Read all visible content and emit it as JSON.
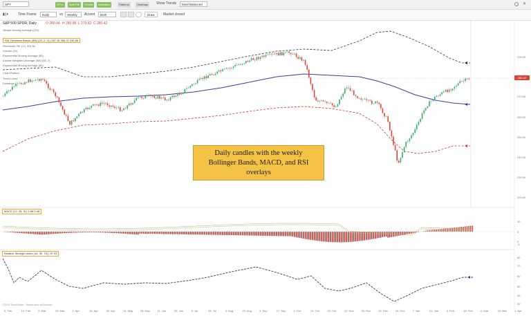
{
  "app": {
    "symbol": "SPY",
    "chart_title": "S&P 500 SPDR, Daily",
    "ohlc": {
      "open": "O 280.44",
      "high": "H 280.88",
      "low": "L 279.82",
      "close": "C 280.42"
    },
    "current_price": "280.42"
  },
  "toolbar": {
    "timeframe_label": "Time Frame",
    "timeframe_value": "Daily",
    "vs_label": "vs",
    "compare_value": "Weekly",
    "accent_label": "Accent",
    "accent_value": "Both",
    "chips": [
      "SPYn",
      "Auto Fib",
      "Trends",
      "Indicators",
      "Patterns",
      "Heatmap"
    ],
    "show_trends_label": "Show Trends",
    "most_balanced_label": "Most Balanced",
    "draw_label": "Draw",
    "status_label": "Market closed"
  },
  "indicator_list": [
    {
      "label": "Simple Moving Average (200)",
      "highlight": false
    },
    {
      "label": "Std. Deviation Bands (Wk) (20, 2, 2)  |  287.15  266.37  245.85",
      "highlight": true
    },
    {
      "label": "Stochastic %K (14, 3D)  80",
      "highlight": false
    },
    {
      "label": "Volume (20)",
      "highlight": false
    },
    {
      "label": "Exponential Moving Average (50)",
      "highlight": false
    },
    {
      "label": "Double Weighted Average (Wk) (50, 2)",
      "highlight": false
    },
    {
      "label": "Exponential Moving Average (50)",
      "highlight": false
    },
    {
      "label": "Chart Pattern",
      "highlight": false
    },
    {
      "label": "Trend Lines",
      "highlight": false
    },
    {
      "label": "Drawings",
      "highlight": false
    }
  ],
  "macd_pane": {
    "label": "MACD (12, 26, 9)  |  0.58  0.48"
  },
  "rsi_pane": {
    "label": "Relative Strength Index (14, 30, 70)  |  57.93"
  },
  "callout": {
    "text": "Daily candles with the weekly Bollinger Bands, MACD, and RSI overlays"
  },
  "price_axis": [
    "290.00",
    "280.00",
    "270.00",
    "260.00",
    "250.00",
    "240.00",
    "230.00",
    "220.00"
  ],
  "macd_axis": [
    "10",
    "5",
    "0",
    "-5"
  ],
  "rsi_axis": [
    "80",
    "70",
    "60",
    "50",
    "40",
    "30"
  ],
  "date_axis": [
    "5. Feb",
    "19. Feb",
    "5. Mar",
    "19. Mar",
    "2. Apr",
    "16. Apr",
    "30. Apr",
    "14. May",
    "28. May",
    "11. Jun",
    "25. Jun",
    "9. Jul",
    "23. Jul",
    "6. Aug",
    "20. Aug",
    "3. Sep",
    "17. Sep",
    "1. Oct",
    "15. Oct",
    "29. Oct",
    "12. Nov",
    "26. Nov",
    "10. Dec",
    "24. Dec",
    "7. Jan",
    "21. Jan",
    "4. Feb",
    "18. Feb",
    "4. Mar",
    "18. Mar",
    "1. Apr"
  ],
  "footnote": "©2019 TrendSpider · Market data via Barchart",
  "colors": {
    "bull": "#3aa86b",
    "bear": "#d9453c",
    "upper_band": "#333333",
    "middle_band": "#3b3a9e",
    "lower_band": "#c0392b",
    "macd_line": "#8fbf70",
    "signal_line": "#d9b36b",
    "rsi_line": "#2d3a66",
    "accent": "#f0a72c"
  }
}
